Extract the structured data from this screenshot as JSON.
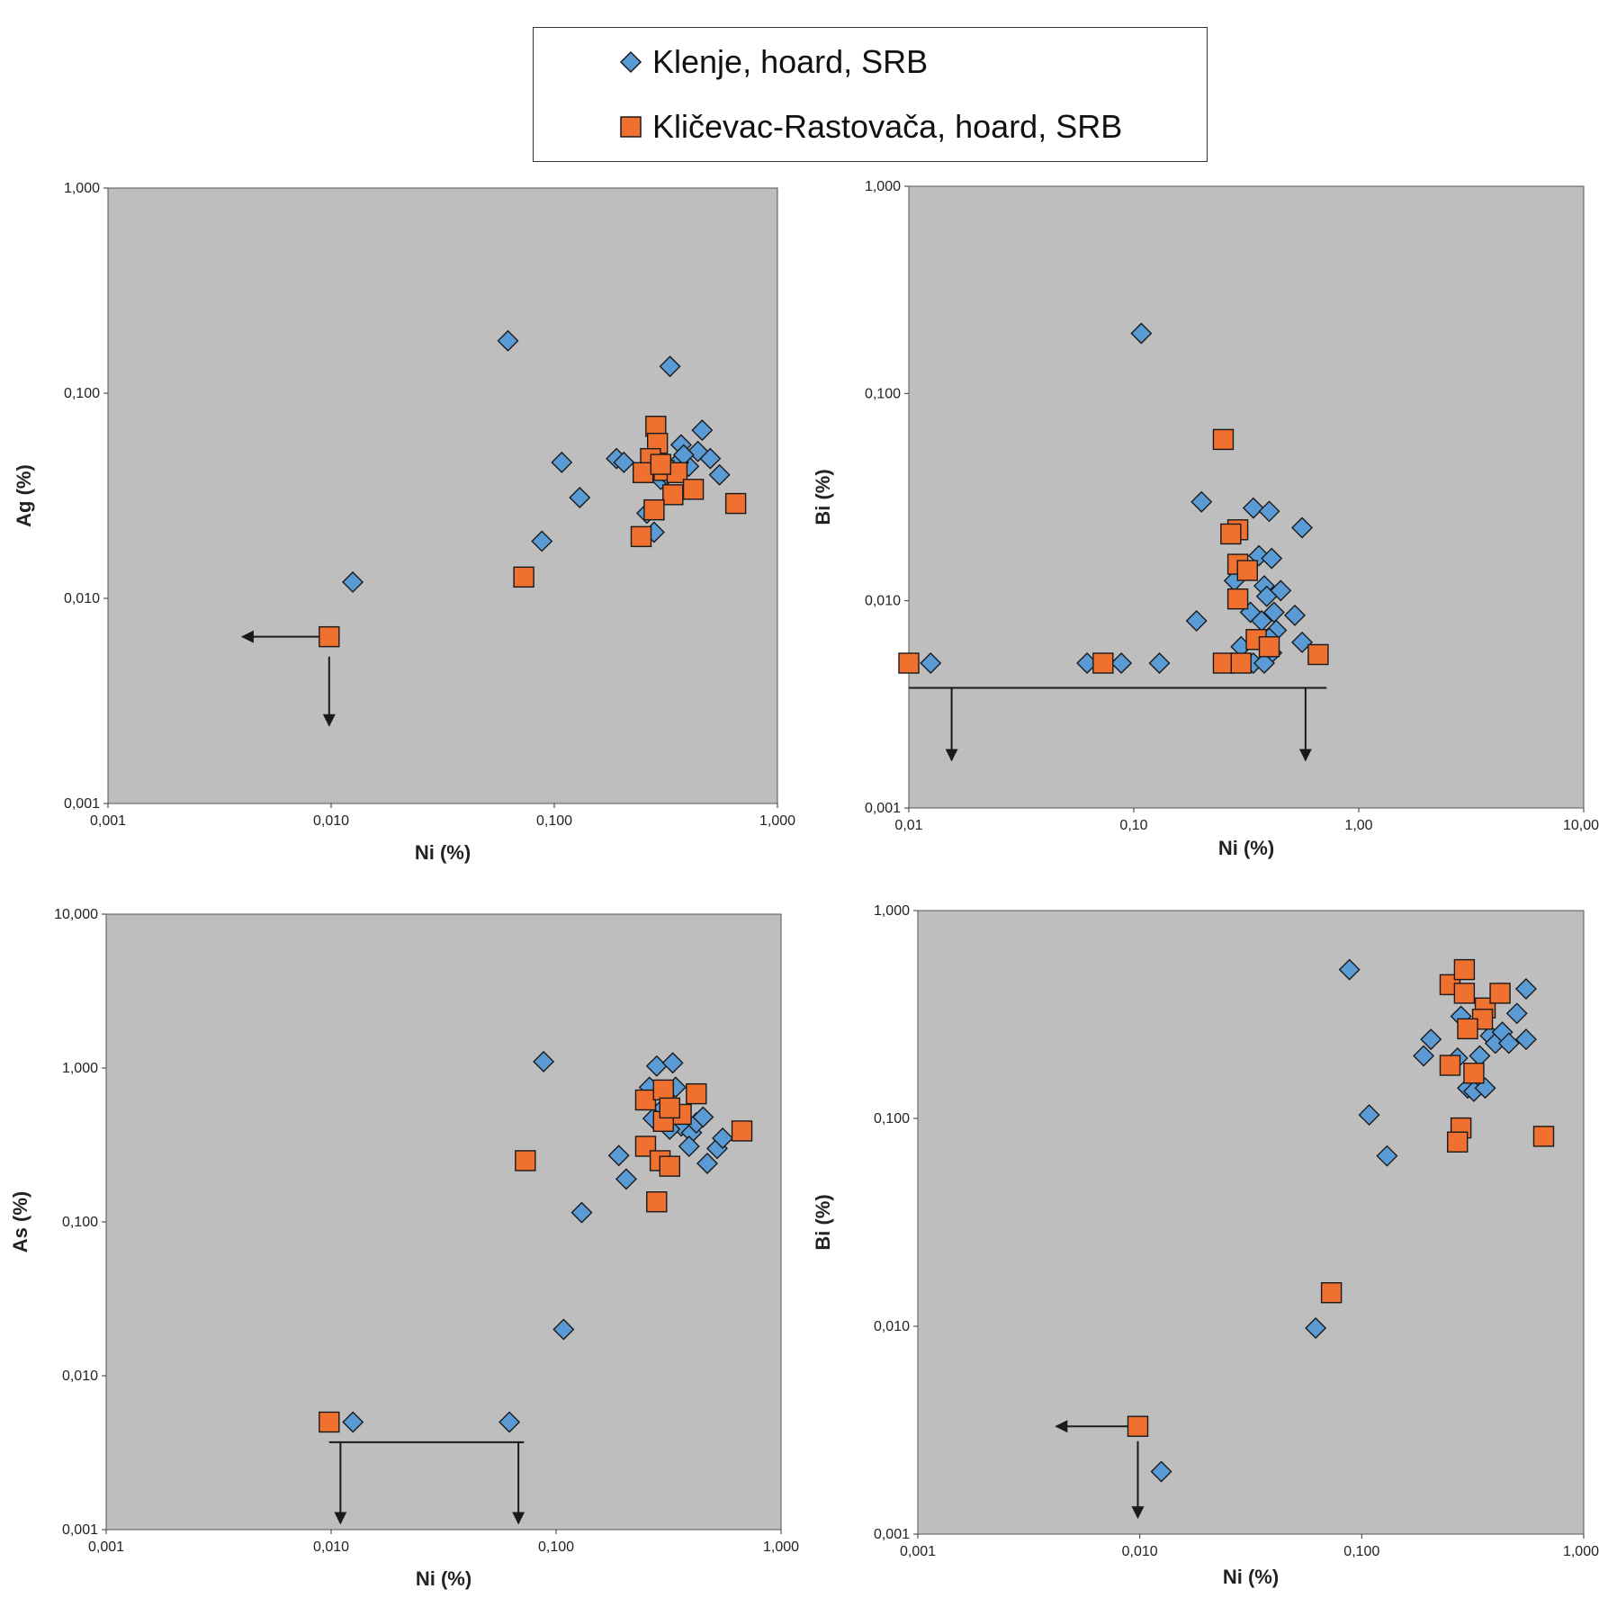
{
  "legend": {
    "items": [
      {
        "label": "Klenje, hoard, SRB",
        "marker": "diamond",
        "color": "#5b9bd5"
      },
      {
        "label": "Kličevac-Rastovača, hoard, SRB",
        "marker": "square",
        "color": "#f07030"
      }
    ]
  },
  "colors": {
    "plot_bg": "#bebebe",
    "klenje": "#5b9bd5",
    "klicevac": "#f07030",
    "edge": "#1a1a1a"
  },
  "chart_data": [
    {
      "type": "scatter",
      "log_scale": true,
      "xlabel": "Ni (%)",
      "ylabel": "Ag (%)",
      "xlim": [
        0.001,
        1
      ],
      "ylim": [
        0.001,
        1
      ],
      "xticks": [
        "0,001",
        "0,010",
        "0,100",
        "1,000"
      ],
      "yticks": [
        "0,001",
        "0,010",
        "0,100",
        "1,000"
      ],
      "series": [
        {
          "name": "Klenje, hoard, SRB",
          "marker": "diamond",
          "points": [
            [
              0.0125,
              0.012
            ],
            [
              0.062,
              0.18
            ],
            [
              0.33,
              0.135
            ],
            [
              0.108,
              0.046
            ],
            [
              0.13,
              0.031
            ],
            [
              0.088,
              0.019
            ],
            [
              0.19,
              0.048
            ],
            [
              0.205,
              0.046
            ],
            [
              0.37,
              0.056
            ],
            [
              0.44,
              0.052
            ],
            [
              0.46,
              0.066
            ],
            [
              0.5,
              0.048
            ],
            [
              0.55,
              0.04
            ],
            [
              0.4,
              0.044
            ],
            [
              0.36,
              0.046
            ],
            [
              0.3,
              0.038
            ],
            [
              0.26,
              0.026
            ],
            [
              0.28,
              0.021
            ],
            [
              0.32,
              0.04
            ],
            [
              0.38,
              0.05
            ]
          ]
        },
        {
          "name": "Kličevac-Rastovača, hoard, SRB",
          "marker": "square",
          "points": [
            [
              0.0098,
              0.0065
            ],
            [
              0.073,
              0.0127
            ],
            [
              0.285,
              0.069
            ],
            [
              0.29,
              0.057
            ],
            [
              0.27,
              0.048
            ],
            [
              0.25,
              0.041
            ],
            [
              0.31,
              0.042
            ],
            [
              0.355,
              0.041
            ],
            [
              0.42,
              0.034
            ],
            [
              0.34,
              0.032
            ],
            [
              0.28,
              0.027
            ],
            [
              0.245,
              0.02
            ],
            [
              0.65,
              0.029
            ],
            [
              0.3,
              0.045
            ]
          ]
        }
      ],
      "annotations": [
        "arrow-left",
        "arrow-down"
      ]
    },
    {
      "type": "scatter",
      "log_scale": true,
      "xlabel": "Ni (%)",
      "ylabel": "Bi (%)",
      "xlim": [
        0.01,
        10
      ],
      "ylim": [
        0.001,
        1
      ],
      "xticks": [
        "0,01",
        "0,10",
        "1,00",
        "10,00"
      ],
      "yticks": [
        "0,001",
        "0,010",
        "0,100",
        "1,000"
      ],
      "series": [
        {
          "name": "Klenje, hoard, SRB",
          "marker": "diamond",
          "points": [
            [
              0.0125,
              0.005
            ],
            [
              0.062,
              0.005
            ],
            [
              0.088,
              0.005
            ],
            [
              0.13,
              0.005
            ],
            [
              0.108,
              0.195
            ],
            [
              0.2,
              0.03
            ],
            [
              0.19,
              0.008
            ],
            [
              0.34,
              0.028
            ],
            [
              0.4,
              0.027
            ],
            [
              0.56,
              0.0225
            ],
            [
              0.36,
              0.0165
            ],
            [
              0.41,
              0.016
            ],
            [
              0.45,
              0.0112
            ],
            [
              0.38,
              0.0118
            ],
            [
              0.28,
              0.0125
            ],
            [
              0.39,
              0.0105
            ],
            [
              0.42,
              0.0088
            ],
            [
              0.33,
              0.0088
            ],
            [
              0.37,
              0.008
            ],
            [
              0.52,
              0.0085
            ],
            [
              0.43,
              0.0072
            ],
            [
              0.4,
              0.0066
            ],
            [
              0.3,
              0.006
            ],
            [
              0.56,
              0.0063
            ],
            [
              0.41,
              0.0056
            ],
            [
              0.27,
              0.005
            ],
            [
              0.34,
              0.005
            ],
            [
              0.38,
              0.005
            ]
          ]
        },
        {
          "name": "Kličevac-Rastovača, hoard, SRB",
          "marker": "square",
          "points": [
            [
              0.01,
              0.005
            ],
            [
              0.073,
              0.005
            ],
            [
              0.25,
              0.06
            ],
            [
              0.29,
              0.022
            ],
            [
              0.27,
              0.021
            ],
            [
              0.29,
              0.015
            ],
            [
              0.32,
              0.014
            ],
            [
              0.29,
              0.0102
            ],
            [
              0.35,
              0.0065
            ],
            [
              0.4,
              0.006
            ],
            [
              0.66,
              0.0055
            ],
            [
              0.25,
              0.005
            ],
            [
              0.3,
              0.005
            ]
          ]
        }
      ],
      "annotations": [
        "arrow-down",
        "arrow-down"
      ]
    },
    {
      "type": "scatter",
      "log_scale": true,
      "xlabel": "Ni (%)",
      "ylabel": "As (%)",
      "xlim": [
        0.001,
        1
      ],
      "ylim": [
        0.001,
        10
      ],
      "xticks": [
        "0,001",
        "0,010",
        "0,100",
        "1,000"
      ],
      "yticks": [
        "0,001",
        "0,010",
        "0,100",
        "1,000",
        "10,000"
      ],
      "series": [
        {
          "name": "Klenje, hoard, SRB",
          "marker": "diamond",
          "points": [
            [
              0.0125,
              0.005
            ],
            [
              0.062,
              0.005
            ],
            [
              0.108,
              0.02
            ],
            [
              0.13,
              0.115
            ],
            [
              0.088,
              1.1
            ],
            [
              0.28,
              1.03
            ],
            [
              0.33,
              1.08
            ],
            [
              0.19,
              0.27
            ],
            [
              0.205,
              0.19
            ],
            [
              0.26,
              0.75
            ],
            [
              0.34,
              0.75
            ],
            [
              0.27,
              0.47
            ],
            [
              0.36,
              0.42
            ],
            [
              0.4,
              0.38
            ],
            [
              0.42,
              0.44
            ],
            [
              0.45,
              0.48
            ],
            [
              0.39,
              0.31
            ],
            [
              0.47,
              0.24
            ],
            [
              0.52,
              0.3
            ],
            [
              0.55,
              0.35
            ],
            [
              0.32,
              0.4
            ],
            [
              0.3,
              0.55
            ]
          ]
        },
        {
          "name": "Kličevac-Rastovača, hoard, SRB",
          "marker": "square",
          "points": [
            [
              0.0098,
              0.005
            ],
            [
              0.073,
              0.25
            ],
            [
              0.25,
              0.62
            ],
            [
              0.3,
              0.72
            ],
            [
              0.42,
              0.68
            ],
            [
              0.36,
              0.5
            ],
            [
              0.3,
              0.45
            ],
            [
              0.32,
              0.55
            ],
            [
              0.25,
              0.31
            ],
            [
              0.29,
              0.25
            ],
            [
              0.32,
              0.23
            ],
            [
              0.28,
              0.135
            ],
            [
              0.67,
              0.39
            ]
          ]
        }
      ],
      "annotations": [
        "arrow-down",
        "arrow-down"
      ]
    },
    {
      "type": "scatter",
      "log_scale": true,
      "xlabel": "Ni (%)",
      "ylabel": "Bi (%)",
      "xlim": [
        0.001,
        1
      ],
      "ylim": [
        0.001,
        1
      ],
      "xticks": [
        "0,001",
        "0,010",
        "0,100",
        "1,000"
      ],
      "yticks": [
        "0,001",
        "0,010",
        "0,100",
        "1,000"
      ],
      "series": [
        {
          "name": "Klenje, hoard, SRB",
          "marker": "diamond",
          "points": [
            [
              0.0125,
              0.002
            ],
            [
              0.062,
              0.0098
            ],
            [
              0.108,
              0.104
            ],
            [
              0.13,
              0.066
            ],
            [
              0.088,
              0.52
            ],
            [
              0.19,
              0.2
            ],
            [
              0.205,
              0.24
            ],
            [
              0.28,
              0.31
            ],
            [
              0.3,
              0.14
            ],
            [
              0.32,
              0.135
            ],
            [
              0.36,
              0.14
            ],
            [
              0.34,
              0.2
            ],
            [
              0.38,
              0.25
            ],
            [
              0.4,
              0.23
            ],
            [
              0.43,
              0.26
            ],
            [
              0.46,
              0.23
            ],
            [
              0.5,
              0.32
            ],
            [
              0.55,
              0.42
            ],
            [
              0.55,
              0.24
            ],
            [
              0.27,
              0.195
            ],
            [
              0.42,
              0.4
            ]
          ]
        },
        {
          "name": "Kličevac-Rastovača, hoard, SRB",
          "marker": "square",
          "points": [
            [
              0.0098,
              0.0033
            ],
            [
              0.073,
              0.0145
            ],
            [
              0.25,
              0.44
            ],
            [
              0.29,
              0.52
            ],
            [
              0.29,
              0.4
            ],
            [
              0.36,
              0.34
            ],
            [
              0.42,
              0.4
            ],
            [
              0.35,
              0.3
            ],
            [
              0.3,
              0.27
            ],
            [
              0.25,
              0.18
            ],
            [
              0.32,
              0.165
            ],
            [
              0.28,
              0.09
            ],
            [
              0.27,
              0.077
            ],
            [
              0.66,
              0.082
            ]
          ]
        }
      ],
      "annotations": [
        "arrow-left",
        "arrow-down"
      ]
    }
  ]
}
